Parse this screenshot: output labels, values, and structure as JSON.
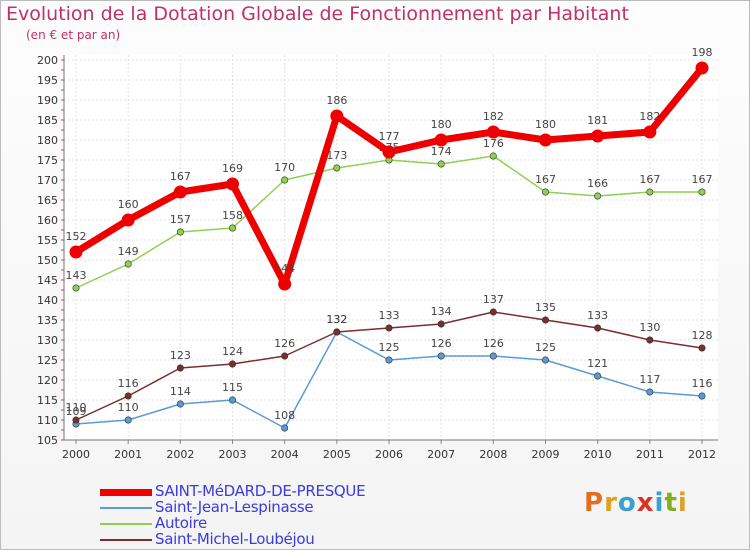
{
  "title": "Evolution de la Dotation Globale de Fonctionnement par Habitant",
  "subtitle": "(en € et par an)",
  "logo_letters": [
    "P",
    "r",
    "o",
    "x",
    "i",
    "t",
    "i"
  ],
  "logo_colors": [
    "#e07020",
    "#e0a020",
    "#3aa0d0",
    "#e03020",
    "#3aa0d0",
    "#80b020",
    "#e0a020"
  ],
  "chart_data": {
    "type": "line",
    "x": [
      2000,
      2001,
      2002,
      2003,
      2004,
      2005,
      2006,
      2007,
      2008,
      2009,
      2010,
      2011,
      2012
    ],
    "ylim": [
      105,
      200
    ],
    "yticks": [
      105,
      110,
      115,
      120,
      125,
      130,
      135,
      140,
      145,
      150,
      155,
      160,
      165,
      170,
      175,
      180,
      185,
      190,
      195,
      200
    ],
    "grid": true,
    "legend_position": "bottom-left",
    "series": [
      {
        "name": "SAINT-MéDARD-DE-PRESQUE",
        "color": "#ee0000",
        "values": [
          152,
          160,
          167,
          169,
          144,
          186,
          177,
          180,
          182,
          180,
          181,
          182,
          198
        ]
      },
      {
        "name": "Saint-Jean-Lespinasse",
        "color": "#5b9bd5",
        "values": [
          109,
          110,
          114,
          115,
          108,
          132,
          125,
          126,
          126,
          125,
          121,
          117,
          116
        ]
      },
      {
        "name": "Autoire",
        "color": "#8fd14f",
        "values": [
          143,
          149,
          157,
          158,
          170,
          173,
          175,
          174,
          176,
          167,
          166,
          167,
          167
        ]
      },
      {
        "name": "Saint-Michel-Loubéjou",
        "color": "#7a2e2e",
        "values": [
          110,
          116,
          123,
          124,
          126,
          132,
          133,
          134,
          137,
          135,
          133,
          130,
          128
        ]
      }
    ]
  }
}
